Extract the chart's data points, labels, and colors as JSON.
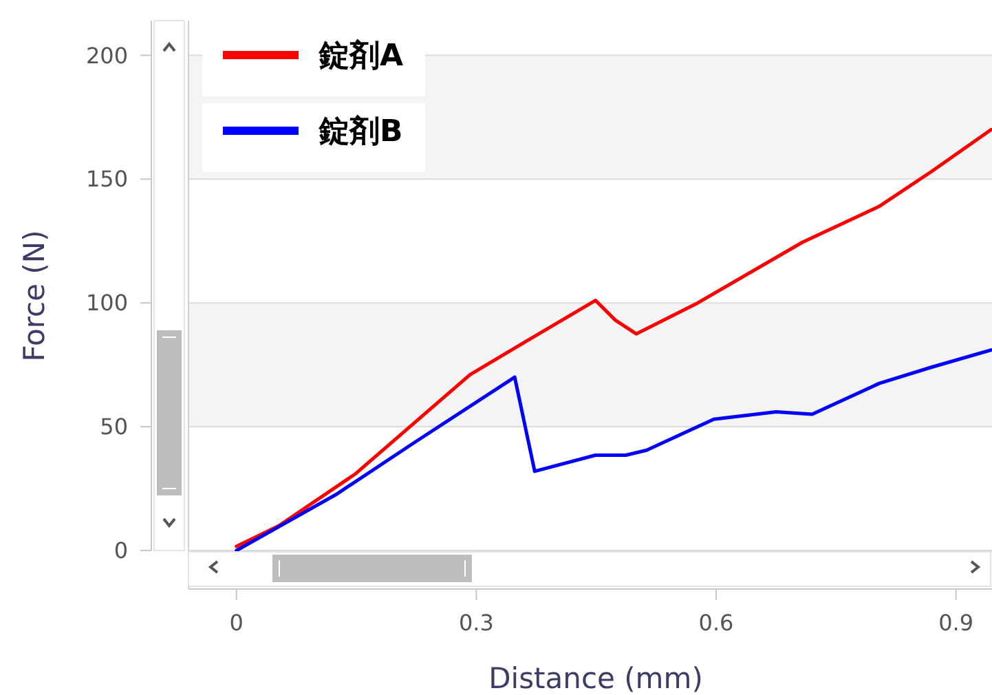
{
  "chart_data": {
    "type": "line",
    "xlabel": "Distance (mm)",
    "ylabel": "Force (N)",
    "xlim": [
      -0.06,
      0.945
    ],
    "ylim": [
      0,
      214
    ],
    "xticks": [
      0,
      0.3,
      0.6,
      0.9
    ],
    "yticks": [
      0,
      50,
      100,
      150,
      200
    ],
    "grid": "y",
    "legend": "top left",
    "line_style": "solid",
    "bands": [
      {
        "axis": "y",
        "from": 50,
        "to": 100,
        "color": "#f4f4f4"
      },
      {
        "axis": "y",
        "from": 150,
        "to": 200,
        "color": "#f4f4f4"
      }
    ],
    "series": [
      {
        "name": "錠剤A",
        "color": "#ff0000",
        "x": [
          0,
          0.053,
          0.149,
          0.292,
          0.344,
          0.449,
          0.474,
          0.5,
          0.577,
          0.708,
          0.804,
          0.869,
          0.944
        ],
        "values": [
          1.7,
          10,
          31,
          71,
          81,
          101,
          93,
          87.5,
          100,
          124.5,
          139,
          153,
          170
        ]
      },
      {
        "name": "錠剤B",
        "color": "#0000ff",
        "x": [
          0,
          0.124,
          0.222,
          0.348,
          0.373,
          0.449,
          0.487,
          0.513,
          0.597,
          0.675,
          0.72,
          0.804,
          0.869,
          0.944
        ],
        "values": [
          0,
          22.5,
          43.5,
          70,
          32,
          38.5,
          38.5,
          40.5,
          53,
          56,
          55,
          67.5,
          74,
          81
        ]
      }
    ]
  }
}
